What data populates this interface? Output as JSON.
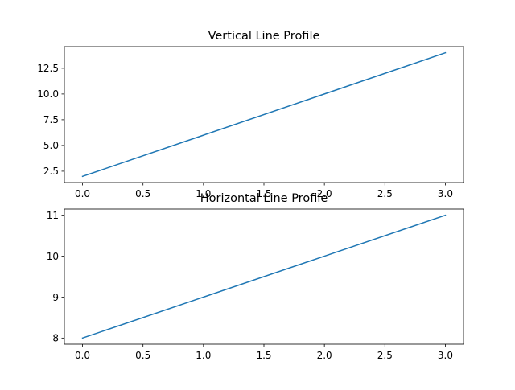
{
  "chart_data": [
    {
      "type": "line",
      "title": "Vertical Line Profile",
      "xlabel": "",
      "ylabel": "",
      "x": [
        0,
        1,
        2,
        3
      ],
      "series": [
        {
          "values": [
            2,
            6,
            10,
            14
          ],
          "color": "#1f77b4"
        }
      ],
      "xlim": [
        -0.15,
        3.15
      ],
      "ylim": [
        1.4,
        14.6
      ],
      "xticks": [
        0.0,
        0.5,
        1.0,
        1.5,
        2.0,
        2.5,
        3.0
      ],
      "xtick_labels": [
        "0.0",
        "0.5",
        "1.0",
        "1.5",
        "2.0",
        "2.5",
        "3.0"
      ],
      "yticks": [
        2.5,
        5.0,
        7.5,
        10.0,
        12.5
      ],
      "ytick_labels": [
        "2.5",
        "5.0",
        "7.5",
        "10.0",
        "12.5"
      ],
      "grid": false,
      "legend": "none"
    },
    {
      "type": "line",
      "title": "Horizontal Line Profile",
      "xlabel": "",
      "ylabel": "",
      "x": [
        0,
        1,
        2,
        3
      ],
      "series": [
        {
          "values": [
            8,
            9,
            10,
            11
          ],
          "color": "#1f77b4"
        }
      ],
      "xlim": [
        -0.15,
        3.15
      ],
      "ylim": [
        7.85,
        11.15
      ],
      "xticks": [
        0.0,
        0.5,
        1.0,
        1.5,
        2.0,
        2.5,
        3.0
      ],
      "xtick_labels": [
        "0.0",
        "0.5",
        "1.0",
        "1.5",
        "2.0",
        "2.5",
        "3.0"
      ],
      "yticks": [
        8,
        9,
        10,
        11
      ],
      "ytick_labels": [
        "8",
        "9",
        "10",
        "11"
      ],
      "grid": false,
      "legend": "none"
    }
  ]
}
